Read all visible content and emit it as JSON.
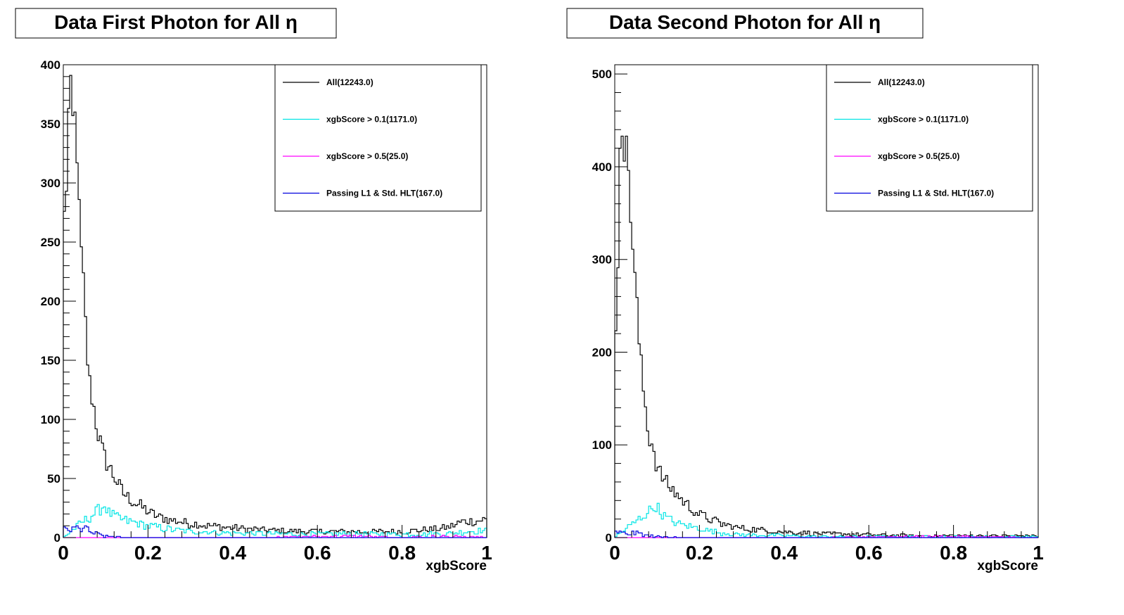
{
  "chart_data": [
    {
      "type": "histogram",
      "title": "Data First Photon for All η",
      "xlabel": "xgbScore",
      "ylabel": "",
      "xlim": [
        0,
        1
      ],
      "ylim": [
        0,
        400
      ],
      "x_ticks": [
        "0",
        "0.2",
        "0.4",
        "0.6",
        "0.8",
        "1"
      ],
      "y_ticks": [
        "0",
        "50",
        "100",
        "150",
        "200",
        "250",
        "300",
        "350",
        "400"
      ],
      "grid": false,
      "legend_position": "top-right",
      "series": [
        {
          "name": "All(12243.0)",
          "color": "#000000",
          "x": [
            0.005,
            0.01,
            0.015,
            0.02,
            0.025,
            0.03,
            0.035,
            0.04,
            0.045,
            0.05,
            0.06,
            0.07,
            0.08,
            0.09,
            0.1,
            0.12,
            0.14,
            0.16,
            0.18,
            0.2,
            0.22,
            0.25,
            0.3,
            0.35,
            0.4,
            0.5,
            0.6,
            0.7,
            0.8,
            0.9,
            0.95,
            1.0
          ],
          "values": [
            270,
            330,
            385,
            355,
            345,
            360,
            300,
            245,
            232,
            195,
            135,
            115,
            92,
            76,
            65,
            52,
            38,
            32,
            27,
            22,
            18,
            15,
            12,
            10,
            8,
            6,
            5,
            5,
            5,
            8,
            14,
            15
          ]
        },
        {
          "name": "xgbScore > 0.1(1171.0)",
          "color": "#00e5e5",
          "x": [
            0.0,
            0.1,
            0.105,
            0.12,
            0.15,
            0.2,
            0.25,
            0.3,
            0.4,
            0.5,
            0.6,
            0.7,
            0.8,
            0.9,
            0.95,
            1.0
          ],
          "values": [
            0,
            28,
            22,
            18,
            14,
            10,
            7,
            5,
            4,
            3,
            3,
            3,
            3,
            3,
            5,
            6
          ]
        },
        {
          "name": "xgbScore > 0.5(25.0)",
          "color": "#ff00ff",
          "x": [
            0.0,
            0.5,
            0.6,
            0.7,
            0.8,
            0.9,
            1.0
          ],
          "values": [
            0,
            0,
            1,
            1,
            0,
            1,
            0
          ]
        },
        {
          "name": "Passing L1 & Std. HLT(167.0)",
          "color": "#0000dd",
          "x": [
            0.0,
            0.01,
            0.02,
            0.03,
            0.04,
            0.05,
            0.06,
            0.08,
            0.1,
            0.15,
            0.2
          ],
          "values": [
            6,
            8,
            5,
            9,
            6,
            10,
            5,
            3,
            1,
            0,
            0
          ]
        }
      ]
    },
    {
      "type": "histogram",
      "title": "Data Second Photon for All η",
      "xlabel": "xgbScore",
      "ylabel": "",
      "xlim": [
        0,
        1
      ],
      "ylim": [
        0,
        510
      ],
      "x_ticks": [
        "0",
        "0.2",
        "0.4",
        "0.6",
        "0.8",
        "1"
      ],
      "y_ticks": [
        "0",
        "100",
        "200",
        "300",
        "400",
        "500"
      ],
      "grid": false,
      "legend_position": "top-right",
      "series": [
        {
          "name": "All(12243.0)",
          "color": "#000000",
          "x": [
            0.005,
            0.01,
            0.015,
            0.02,
            0.025,
            0.03,
            0.035,
            0.04,
            0.05,
            0.06,
            0.07,
            0.08,
            0.09,
            0.1,
            0.12,
            0.14,
            0.16,
            0.18,
            0.2,
            0.25,
            0.3,
            0.35,
            0.4,
            0.5,
            0.6,
            0.7,
            0.8,
            0.9,
            1.0
          ],
          "values": [
            210,
            390,
            490,
            420,
            410,
            420,
            375,
            330,
            265,
            195,
            150,
            110,
            100,
            75,
            60,
            50,
            40,
            32,
            25,
            15,
            10,
            8,
            6,
            4,
            3,
            2,
            2,
            2,
            2
          ]
        },
        {
          "name": "xgbScore > 0.1(1171.0)",
          "color": "#00e5e5",
          "x": [
            0.0,
            0.1,
            0.105,
            0.12,
            0.15,
            0.2,
            0.25,
            0.3,
            0.4,
            0.5,
            0.6,
            0.8,
            1.0
          ],
          "values": [
            0,
            35,
            28,
            22,
            15,
            10,
            5,
            3,
            2,
            1,
            1,
            1,
            1
          ]
        },
        {
          "name": "xgbScore > 0.5(25.0)",
          "color": "#ff00ff",
          "x": [
            0.0,
            0.5,
            0.65,
            0.8,
            1.0
          ],
          "values": [
            0,
            0,
            1,
            1,
            0
          ]
        },
        {
          "name": "Passing L1 & Std. HLT(167.0)",
          "color": "#0000dd",
          "x": [
            0.0,
            0.01,
            0.03,
            0.05,
            0.08,
            0.1,
            0.15,
            0.2
          ],
          "values": [
            5,
            6,
            4,
            5,
            2,
            1,
            0,
            0
          ]
        }
      ]
    }
  ]
}
